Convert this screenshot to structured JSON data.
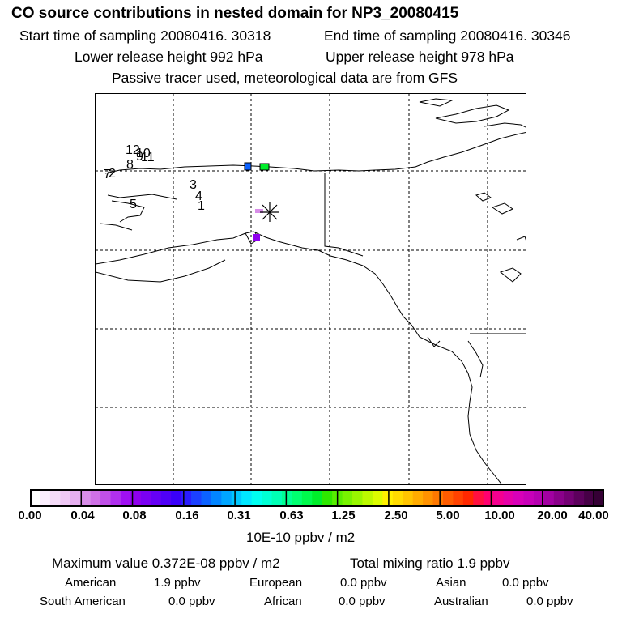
{
  "header": {
    "title": "CO  source contributions in nested domain for NP3_20080415",
    "start_time": "Start time of sampling 20080416. 30318",
    "end_time": "End time of sampling 20080416. 30346",
    "lower_release": "Lower release height  992 hPa",
    "upper_release": "Upper release height  978 hPa",
    "tracer_note": "Passive tracer used, meteorological data are from GFS"
  },
  "map": {
    "trajectory_labels": [
      "12",
      "10",
      "9",
      "11",
      "8",
      "7",
      "2",
      "3",
      "4",
      "1",
      "5"
    ],
    "release_marker": "asterisk",
    "grid_style": "dashed"
  },
  "colorbar": {
    "tick_labels": [
      "0.00",
      "0.04",
      "0.08",
      "0.16",
      "0.31",
      "0.63",
      "1.25",
      "2.50",
      "5.00",
      "10.00",
      "20.00",
      "40.00"
    ],
    "unit_label": "10E-10 ppbv / m2",
    "colors": [
      "#ffffff",
      "#fbeefd",
      "#f5dcf8",
      "#efc8f5",
      "#e6aff0",
      "#d98ee9",
      "#cf70e6",
      "#c050e8",
      "#b030ee",
      "#a010f2",
      "#8f00ee",
      "#7a00f2",
      "#6600f5",
      "#4f00f7",
      "#3a00fa",
      "#2a1cff",
      "#1b40ff",
      "#0c62ff",
      "#0285ff",
      "#00a6ff",
      "#00c8ff",
      "#00e8ff",
      "#00fff0",
      "#00ffd4",
      "#00ffb5",
      "#00ff93",
      "#00ff70",
      "#00fa4c",
      "#00ee2a",
      "#2ee800",
      "#57ee00",
      "#78f300",
      "#99f700",
      "#bcfa00",
      "#dcfd00",
      "#fff000",
      "#ffdb00",
      "#ffc400",
      "#ffab00",
      "#ff9200",
      "#ff7800",
      "#ff5c00",
      "#ff4200",
      "#ff2800",
      "#ff1040",
      "#ff0070",
      "#f50090",
      "#e600a8",
      "#d800b8",
      "#c800b8",
      "#b600b0",
      "#a200a2",
      "#8a008a",
      "#740074",
      "#5c005c",
      "#460046",
      "#350035"
    ]
  },
  "summary": {
    "max_value": "Maximum value  0.372E-08 ppbv / m2",
    "total_mixing": "Total mixing ratio        1.9 ppbv",
    "regions": [
      {
        "name": "American",
        "value": "1.9 ppbv"
      },
      {
        "name": "European",
        "value": "0.0 ppbv"
      },
      {
        "name": "Asian",
        "value": "0.0 ppbv"
      },
      {
        "name": "South American",
        "value": "0.0 ppbv"
      },
      {
        "name": "African",
        "value": "0.0 ppbv"
      },
      {
        "name": "Australian",
        "value": "0.0 ppbv"
      }
    ]
  }
}
